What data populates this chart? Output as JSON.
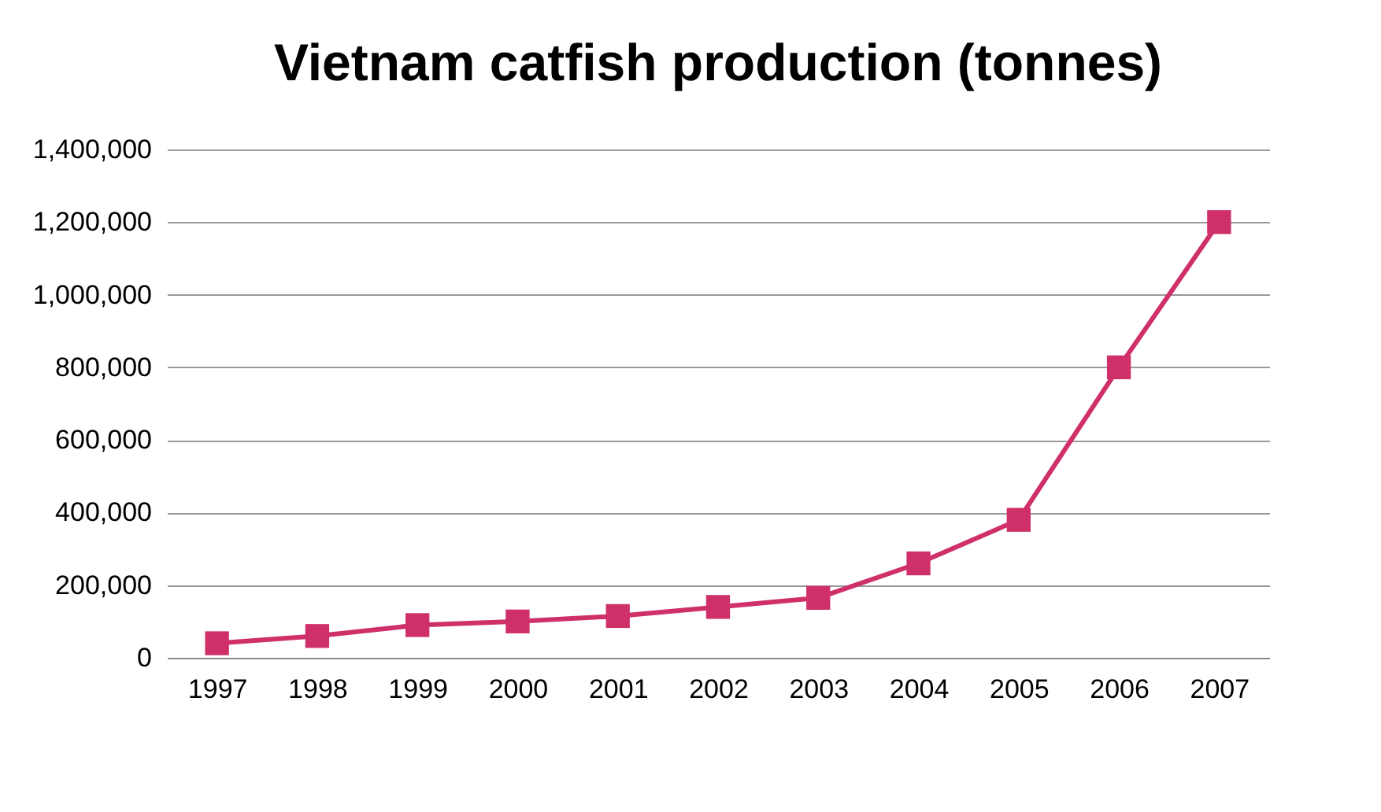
{
  "chart_data": {
    "type": "line",
    "title": "Vietnam catfish production (tonnes)",
    "categories": [
      "1997",
      "1998",
      "1999",
      "2000",
      "2001",
      "2002",
      "2003",
      "2004",
      "2005",
      "2006",
      "2007"
    ],
    "series": [
      {
        "color": "#d0306a",
        "values": [
          40000,
          60000,
          90000,
          100000,
          115000,
          140000,
          165000,
          260000,
          380000,
          800000,
          1200000
        ]
      }
    ],
    "ylim": [
      0,
      1400000
    ],
    "yticks": [
      0,
      {
        "value": 200000,
        "label": "200,000"
      },
      {
        "value": 400000,
        "label": "400,000"
      },
      {
        "value": 600000,
        "label": "600,000"
      },
      {
        "value": 800000,
        "label": "800,000"
      },
      {
        "value": 1000000,
        "label": "1,000,000"
      },
      {
        "value": 1200000,
        "label": "1,200,000"
      },
      {
        "value": 1400000,
        "label": "1,400,000"
      }
    ],
    "grid": "y",
    "marker": "square",
    "line_style": "solid"
  }
}
